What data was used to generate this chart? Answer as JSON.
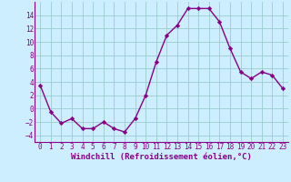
{
  "x": [
    0,
    1,
    2,
    3,
    4,
    5,
    6,
    7,
    8,
    9,
    10,
    11,
    12,
    13,
    14,
    15,
    16,
    17,
    18,
    19,
    20,
    21,
    22,
    23
  ],
  "y": [
    3.5,
    -0.5,
    -2.2,
    -1.5,
    -3.0,
    -3.0,
    -2.0,
    -3.0,
    -3.5,
    -1.5,
    2.0,
    7.0,
    11.0,
    12.5,
    15.0,
    15.0,
    15.0,
    13.0,
    9.0,
    5.5,
    4.5,
    5.5,
    5.0,
    3.0
  ],
  "line_color": "#880088",
  "marker": "D",
  "marker_size": 2.2,
  "bg_color": "#cceeff",
  "grid_color": "#99cccc",
  "xlabel": "Windchill (Refroidissement éolien,°C)",
  "ylim": [
    -5,
    16
  ],
  "xlim": [
    -0.5,
    23.5
  ],
  "yticks": [
    -4,
    -2,
    0,
    2,
    4,
    6,
    8,
    10,
    12,
    14
  ],
  "xticks": [
    0,
    1,
    2,
    3,
    4,
    5,
    6,
    7,
    8,
    9,
    10,
    11,
    12,
    13,
    14,
    15,
    16,
    17,
    18,
    19,
    20,
    21,
    22,
    23
  ],
  "xlabel_fontsize": 6.5,
  "tick_fontsize": 5.5,
  "linewidth": 1.0
}
